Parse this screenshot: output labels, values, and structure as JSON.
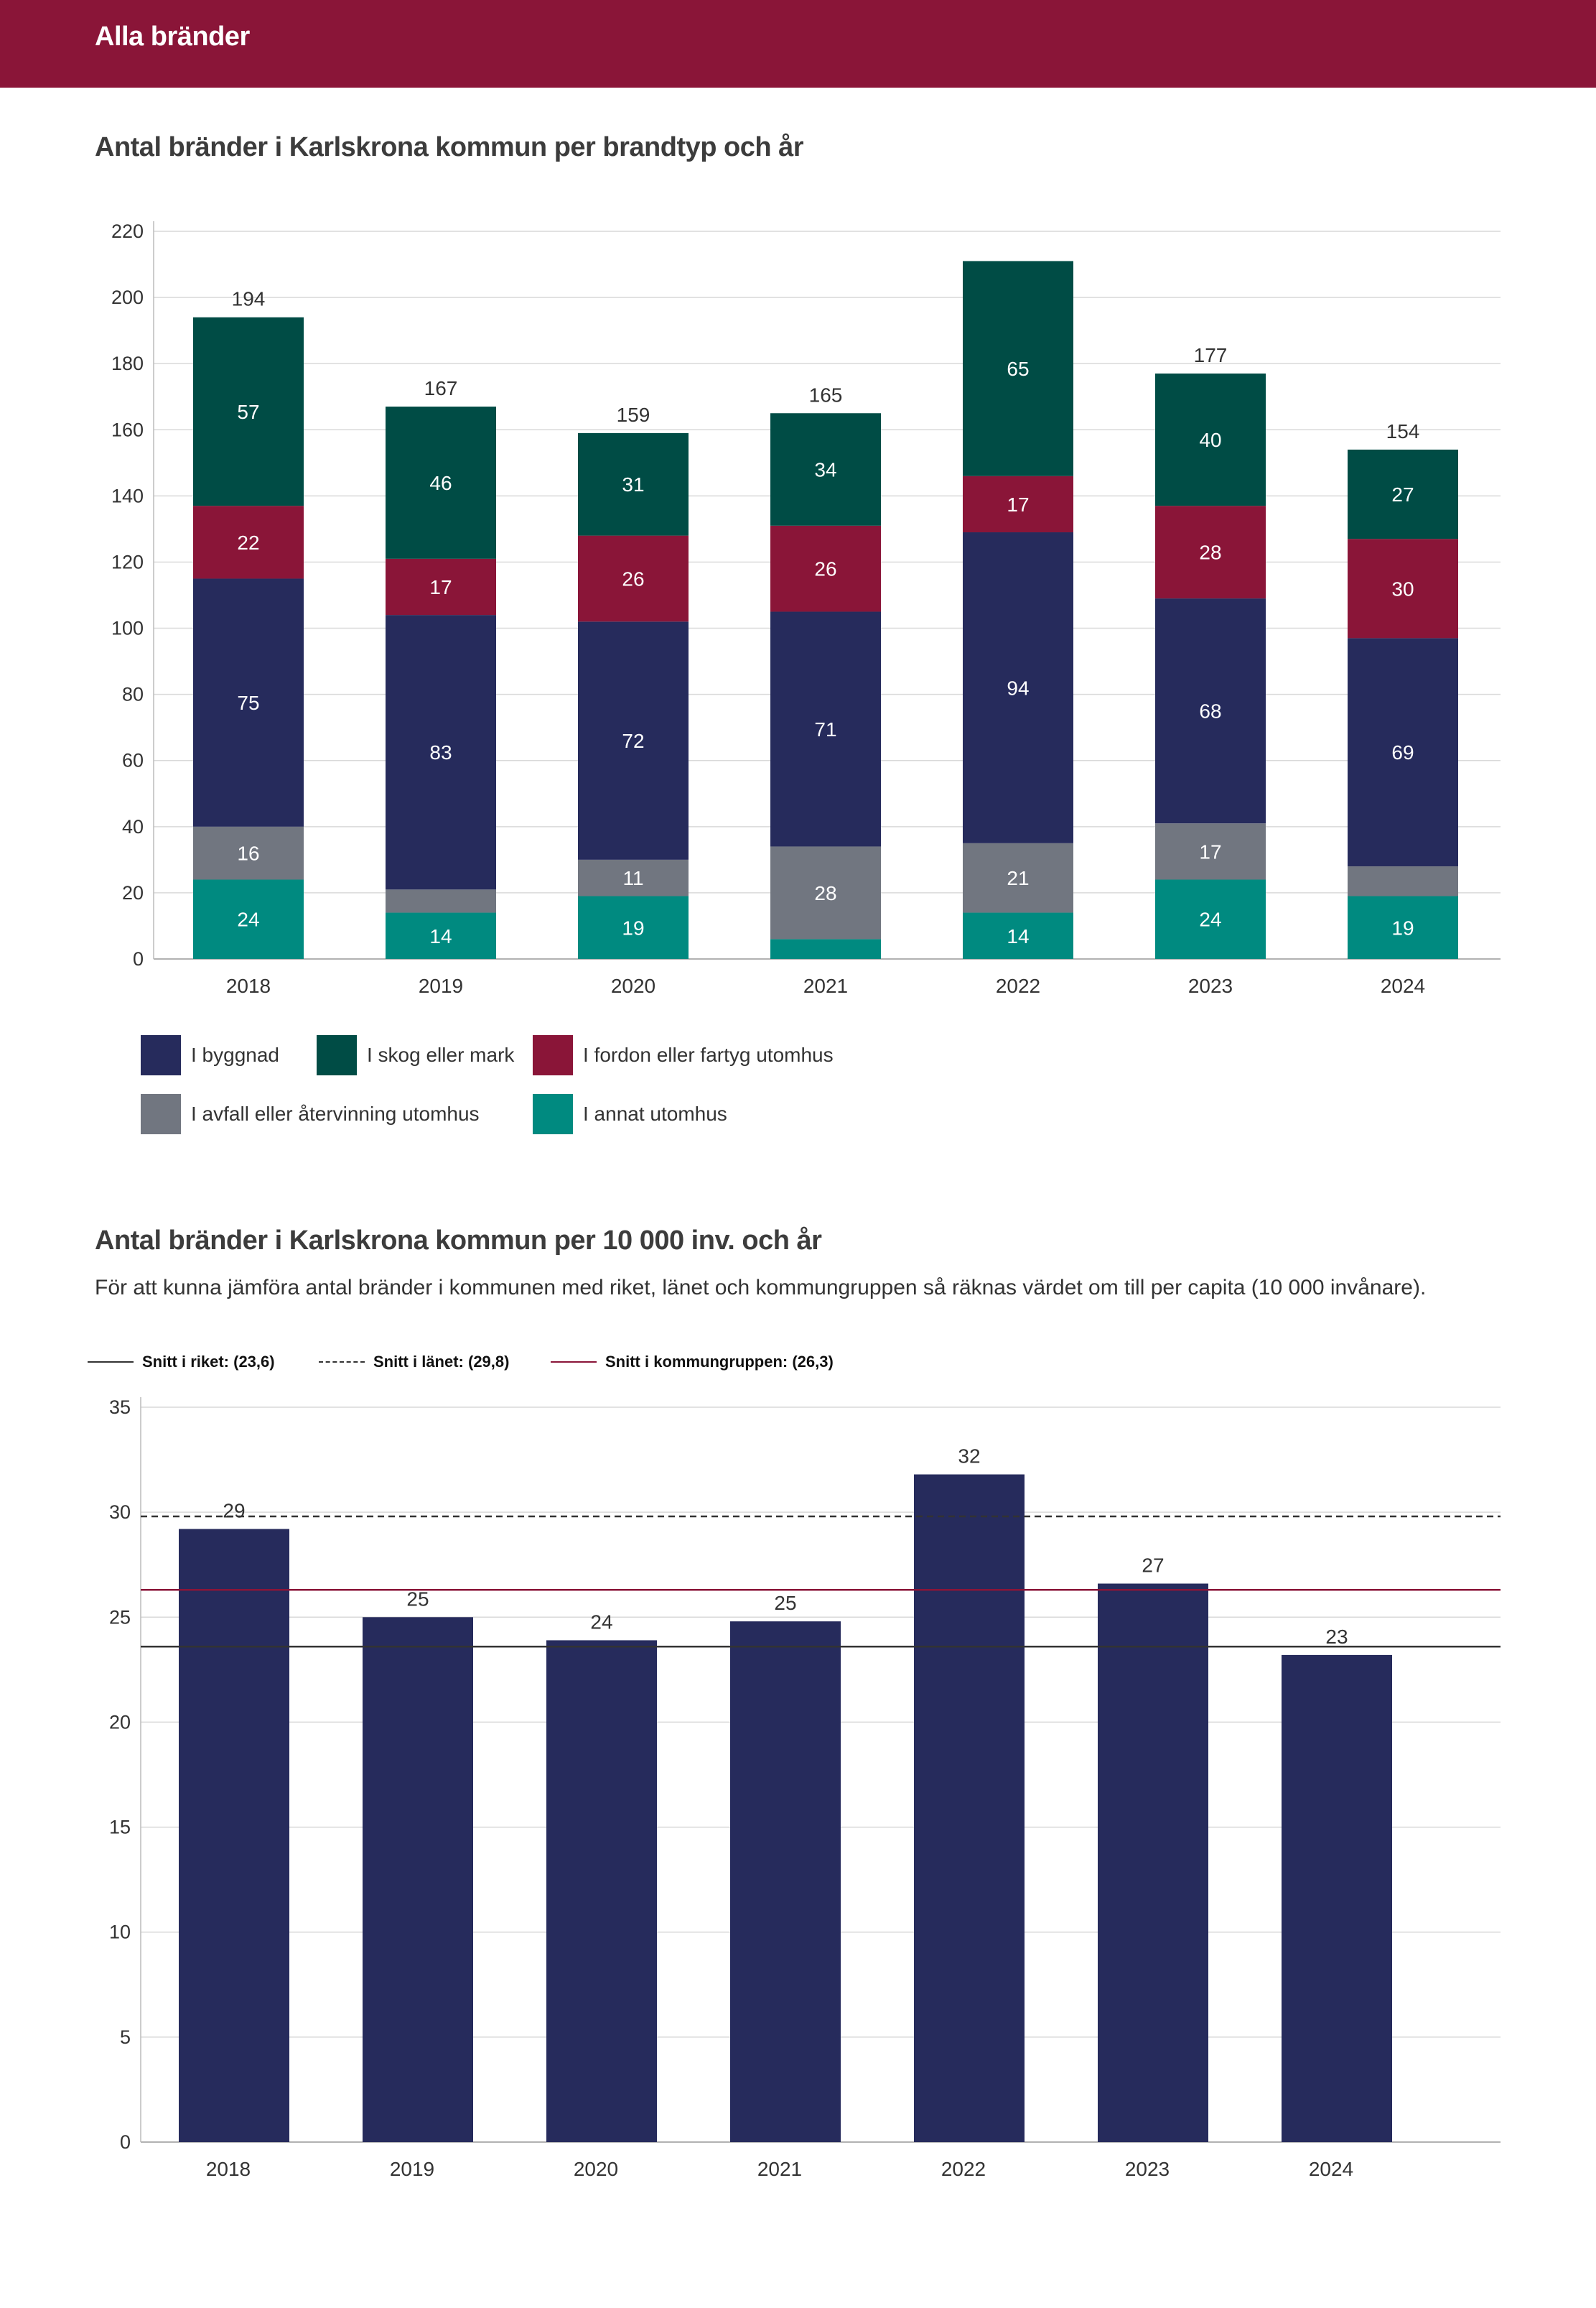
{
  "header": {
    "title": "Alla bränder"
  },
  "chart1": {
    "title": "Antal bränder i Karlskrona kommun per brandtyp och år"
  },
  "chart2": {
    "title": "Antal bränder i Karlskrona kommun per 10 000 inv. och år",
    "description": "För att kunna jämföra antal bränder i kommunen med riket, länet och kommungruppen så räknas värdet om till per capita (10 000 invånare)."
  },
  "colors": {
    "header": "#8a1538",
    "byggnad": "#262b5c",
    "skog": "#004c45",
    "fordon": "#8a1538",
    "avfall": "#717680",
    "annat": "#008a80",
    "grid": "#d9d9d9"
  },
  "chart_data": [
    {
      "type": "bar",
      "stacked": true,
      "title": "Antal bränder i Karlskrona kommun per brandtyp och år",
      "categories": [
        "2018",
        "2019",
        "2020",
        "2021",
        "2022",
        "2023",
        "2024"
      ],
      "ylim": [
        0,
        220
      ],
      "yticks": [
        0,
        20,
        40,
        60,
        80,
        100,
        120,
        140,
        160,
        180,
        200,
        220
      ],
      "grid": true,
      "legend_position": "bottom-left",
      "series": [
        {
          "name": "I annat utomhus",
          "color": "#008a80",
          "values": [
            24,
            14,
            19,
            6,
            14,
            24,
            19
          ],
          "labels": [
            "24",
            "14",
            "19",
            "",
            "14",
            "24",
            "19"
          ]
        },
        {
          "name": "I avfall eller återvinning utomhus",
          "color": "#717680",
          "values": [
            16,
            7,
            11,
            28,
            21,
            17,
            9
          ],
          "labels": [
            "16",
            "",
            "11",
            "28",
            "21",
            "17",
            ""
          ]
        },
        {
          "name": "I byggnad",
          "color": "#262b5c",
          "values": [
            75,
            83,
            72,
            71,
            94,
            68,
            69
          ],
          "labels": [
            "75",
            "83",
            "72",
            "71",
            "94",
            "68",
            "69"
          ]
        },
        {
          "name": "I fordon eller fartyg utomhus",
          "color": "#8a1538",
          "values": [
            22,
            17,
            26,
            26,
            17,
            28,
            30
          ],
          "labels": [
            "22",
            "17",
            "26",
            "26",
            "17",
            "28",
            "30"
          ]
        },
        {
          "name": "I skog eller mark",
          "color": "#004c45",
          "values": [
            57,
            46,
            31,
            34,
            65,
            40,
            27
          ],
          "labels": [
            "57",
            "46",
            "31",
            "34",
            "65",
            "40",
            "27"
          ]
        }
      ],
      "totals": [
        194,
        167,
        159,
        165,
        211,
        177,
        154
      ],
      "total_labels": [
        "194",
        "167",
        "159",
        "165",
        "",
        "177",
        "154"
      ],
      "legend": [
        {
          "name": "I byggnad",
          "color": "#262b5c"
        },
        {
          "name": "I skog eller mark",
          "color": "#004c45"
        },
        {
          "name": "I fordon eller fartyg utomhus",
          "color": "#8a1538"
        },
        {
          "name": "I avfall eller återvinning utomhus",
          "color": "#717680"
        },
        {
          "name": "I annat utomhus",
          "color": "#008a80"
        }
      ]
    },
    {
      "type": "bar",
      "title": "Antal bränder i Karlskrona kommun per 10 000 inv. och år",
      "categories": [
        "2018",
        "2019",
        "2020",
        "2021",
        "2022",
        "2023",
        "2024"
      ],
      "values": [
        29.2,
        25.0,
        23.9,
        24.8,
        31.8,
        26.6,
        23.2
      ],
      "value_labels": [
        "29",
        "25",
        "24",
        "25",
        "32",
        "27",
        "23"
      ],
      "ylim": [
        0,
        35
      ],
      "yticks": [
        0,
        5,
        10,
        15,
        20,
        25,
        30,
        35
      ],
      "grid": true,
      "bar_color": "#262b5c",
      "reference_lines": [
        {
          "label": "Snitt i riket: (23,6)",
          "value": 23.6,
          "style": "solid",
          "color": "#333333"
        },
        {
          "label": "Snitt i länet: (29,8)",
          "value": 29.8,
          "style": "dashed",
          "color": "#333333"
        },
        {
          "label": "Snitt i kommungruppen: (26,3)",
          "value": 26.3,
          "style": "solid",
          "color": "#8a1538"
        }
      ]
    }
  ]
}
